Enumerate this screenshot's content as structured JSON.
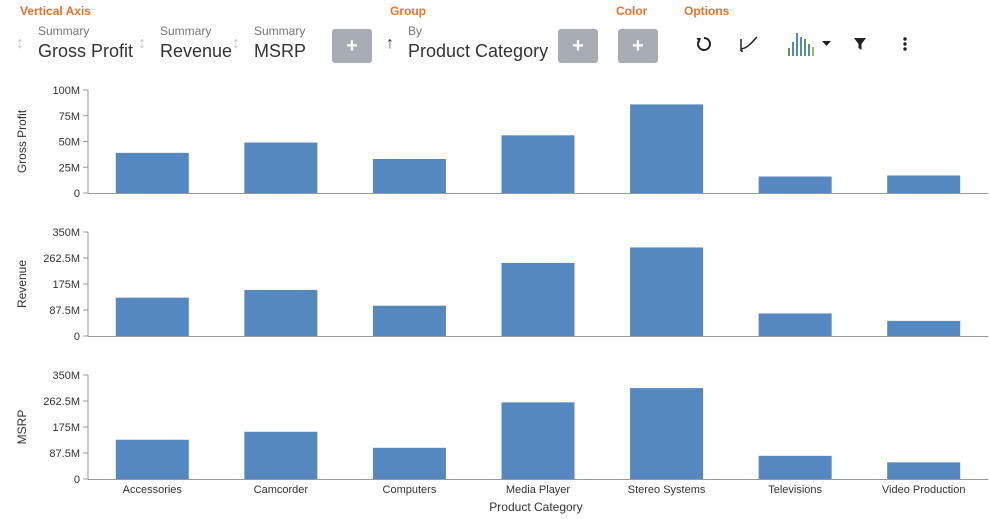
{
  "toolbar": {
    "vertical_axis_label": "Vertical Axis",
    "group_label": "Group",
    "color_label": "Color",
    "options_label": "Options",
    "fields": [
      {
        "sub": "Summary",
        "main": "Gross Profit"
      },
      {
        "sub": "Summary",
        "main": "Revenue"
      },
      {
        "sub": "Summary",
        "main": "MSRP"
      }
    ],
    "group_field": {
      "sub": "By",
      "main": "Product Category"
    },
    "add_symbol": "+",
    "icons": [
      "reset-icon",
      "curve-icon",
      "chart-type-icon",
      "filter-icon",
      "more-icon"
    ]
  },
  "chart_data": [
    {
      "type": "bar",
      "ylabel": "Gross Profit",
      "categories": [
        "Accessories",
        "Camcorder",
        "Computers",
        "Media Player",
        "Stereo Systems",
        "Televisions",
        "Video Production"
      ],
      "values": [
        39,
        49,
        33,
        56,
        86,
        16,
        17
      ],
      "ylim": [
        0,
        100
      ],
      "ticks": [
        0,
        25,
        50,
        75,
        100
      ],
      "tick_labels": [
        "0",
        "25M",
        "50M",
        "75M",
        "100M"
      ],
      "color": "#5588bf"
    },
    {
      "type": "bar",
      "ylabel": "Revenue",
      "categories": [
        "Accessories",
        "Camcorder",
        "Computers",
        "Media Player",
        "Stereo Systems",
        "Televisions",
        "Video Production"
      ],
      "values": [
        129,
        155,
        102,
        246,
        298,
        76,
        51
      ],
      "ylim": [
        0,
        350
      ],
      "ticks": [
        0,
        87.5,
        175,
        262.5,
        350
      ],
      "tick_labels": [
        "0",
        "87.5M",
        "175M",
        "262.5M",
        "350M"
      ],
      "color": "#5588bf"
    },
    {
      "type": "bar",
      "ylabel": "MSRP",
      "xlabel": "Product Category",
      "categories": [
        "Accessories",
        "Camcorder",
        "Computers",
        "Media Player",
        "Stereo Systems",
        "Televisions",
        "Video Production"
      ],
      "values": [
        132,
        159,
        105,
        258,
        306,
        78,
        56
      ],
      "ylim": [
        0,
        350
      ],
      "ticks": [
        0,
        87.5,
        175,
        262.5,
        350
      ],
      "tick_labels": [
        "0",
        "87.5M",
        "175M",
        "262.5M",
        "350M"
      ],
      "color": "#5588bf"
    }
  ]
}
